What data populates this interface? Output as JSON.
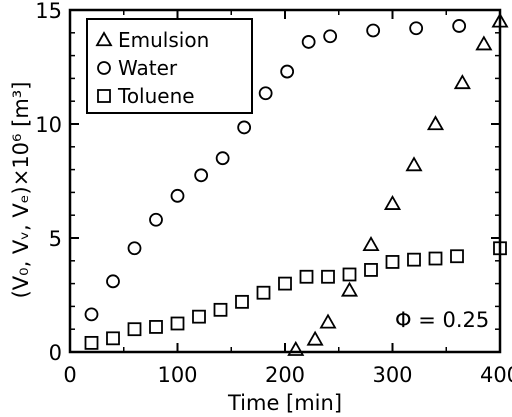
{
  "chart_data": {
    "type": "scatter",
    "title": "",
    "xlabel": "Time [min]",
    "ylabel": "(V₀, Vᵥ, Vₑ)×10⁶ [m³]",
    "xlim": [
      0,
      400
    ],
    "ylim": [
      0,
      15
    ],
    "xticks": [
      0,
      100,
      200,
      300,
      400
    ],
    "yticks": [
      0,
      5,
      10,
      15
    ],
    "grid": false,
    "legend_position": "top-left",
    "annotation": "Φ = 0.25",
    "series": [
      {
        "name": "Emulsion",
        "marker": "triangle",
        "x": [
          210,
          228,
          240,
          260,
          280,
          300,
          320,
          340,
          365,
          385,
          400
        ],
        "y": [
          0.1,
          0.55,
          1.3,
          2.7,
          4.7,
          6.5,
          8.2,
          10.0,
          11.8,
          13.5,
          14.5
        ]
      },
      {
        "name": "Water",
        "marker": "circle",
        "x": [
          20,
          40,
          60,
          80,
          100,
          122,
          142,
          162,
          182,
          202,
          222,
          242,
          282,
          322,
          362
        ],
        "y": [
          1.65,
          3.1,
          4.55,
          5.8,
          6.85,
          7.75,
          8.5,
          9.85,
          11.35,
          12.3,
          13.6,
          13.85,
          14.1,
          14.2,
          14.3
        ]
      },
      {
        "name": "Toluene",
        "marker": "square",
        "x": [
          20,
          40,
          60,
          80,
          100,
          120,
          140,
          160,
          180,
          200,
          220,
          240,
          260,
          280,
          300,
          320,
          340,
          360,
          400
        ],
        "y": [
          0.4,
          0.6,
          1.0,
          1.1,
          1.25,
          1.55,
          1.85,
          2.2,
          2.6,
          3.0,
          3.3,
          3.3,
          3.4,
          3.6,
          3.95,
          4.05,
          4.1,
          4.2,
          4.55
        ]
      }
    ]
  }
}
